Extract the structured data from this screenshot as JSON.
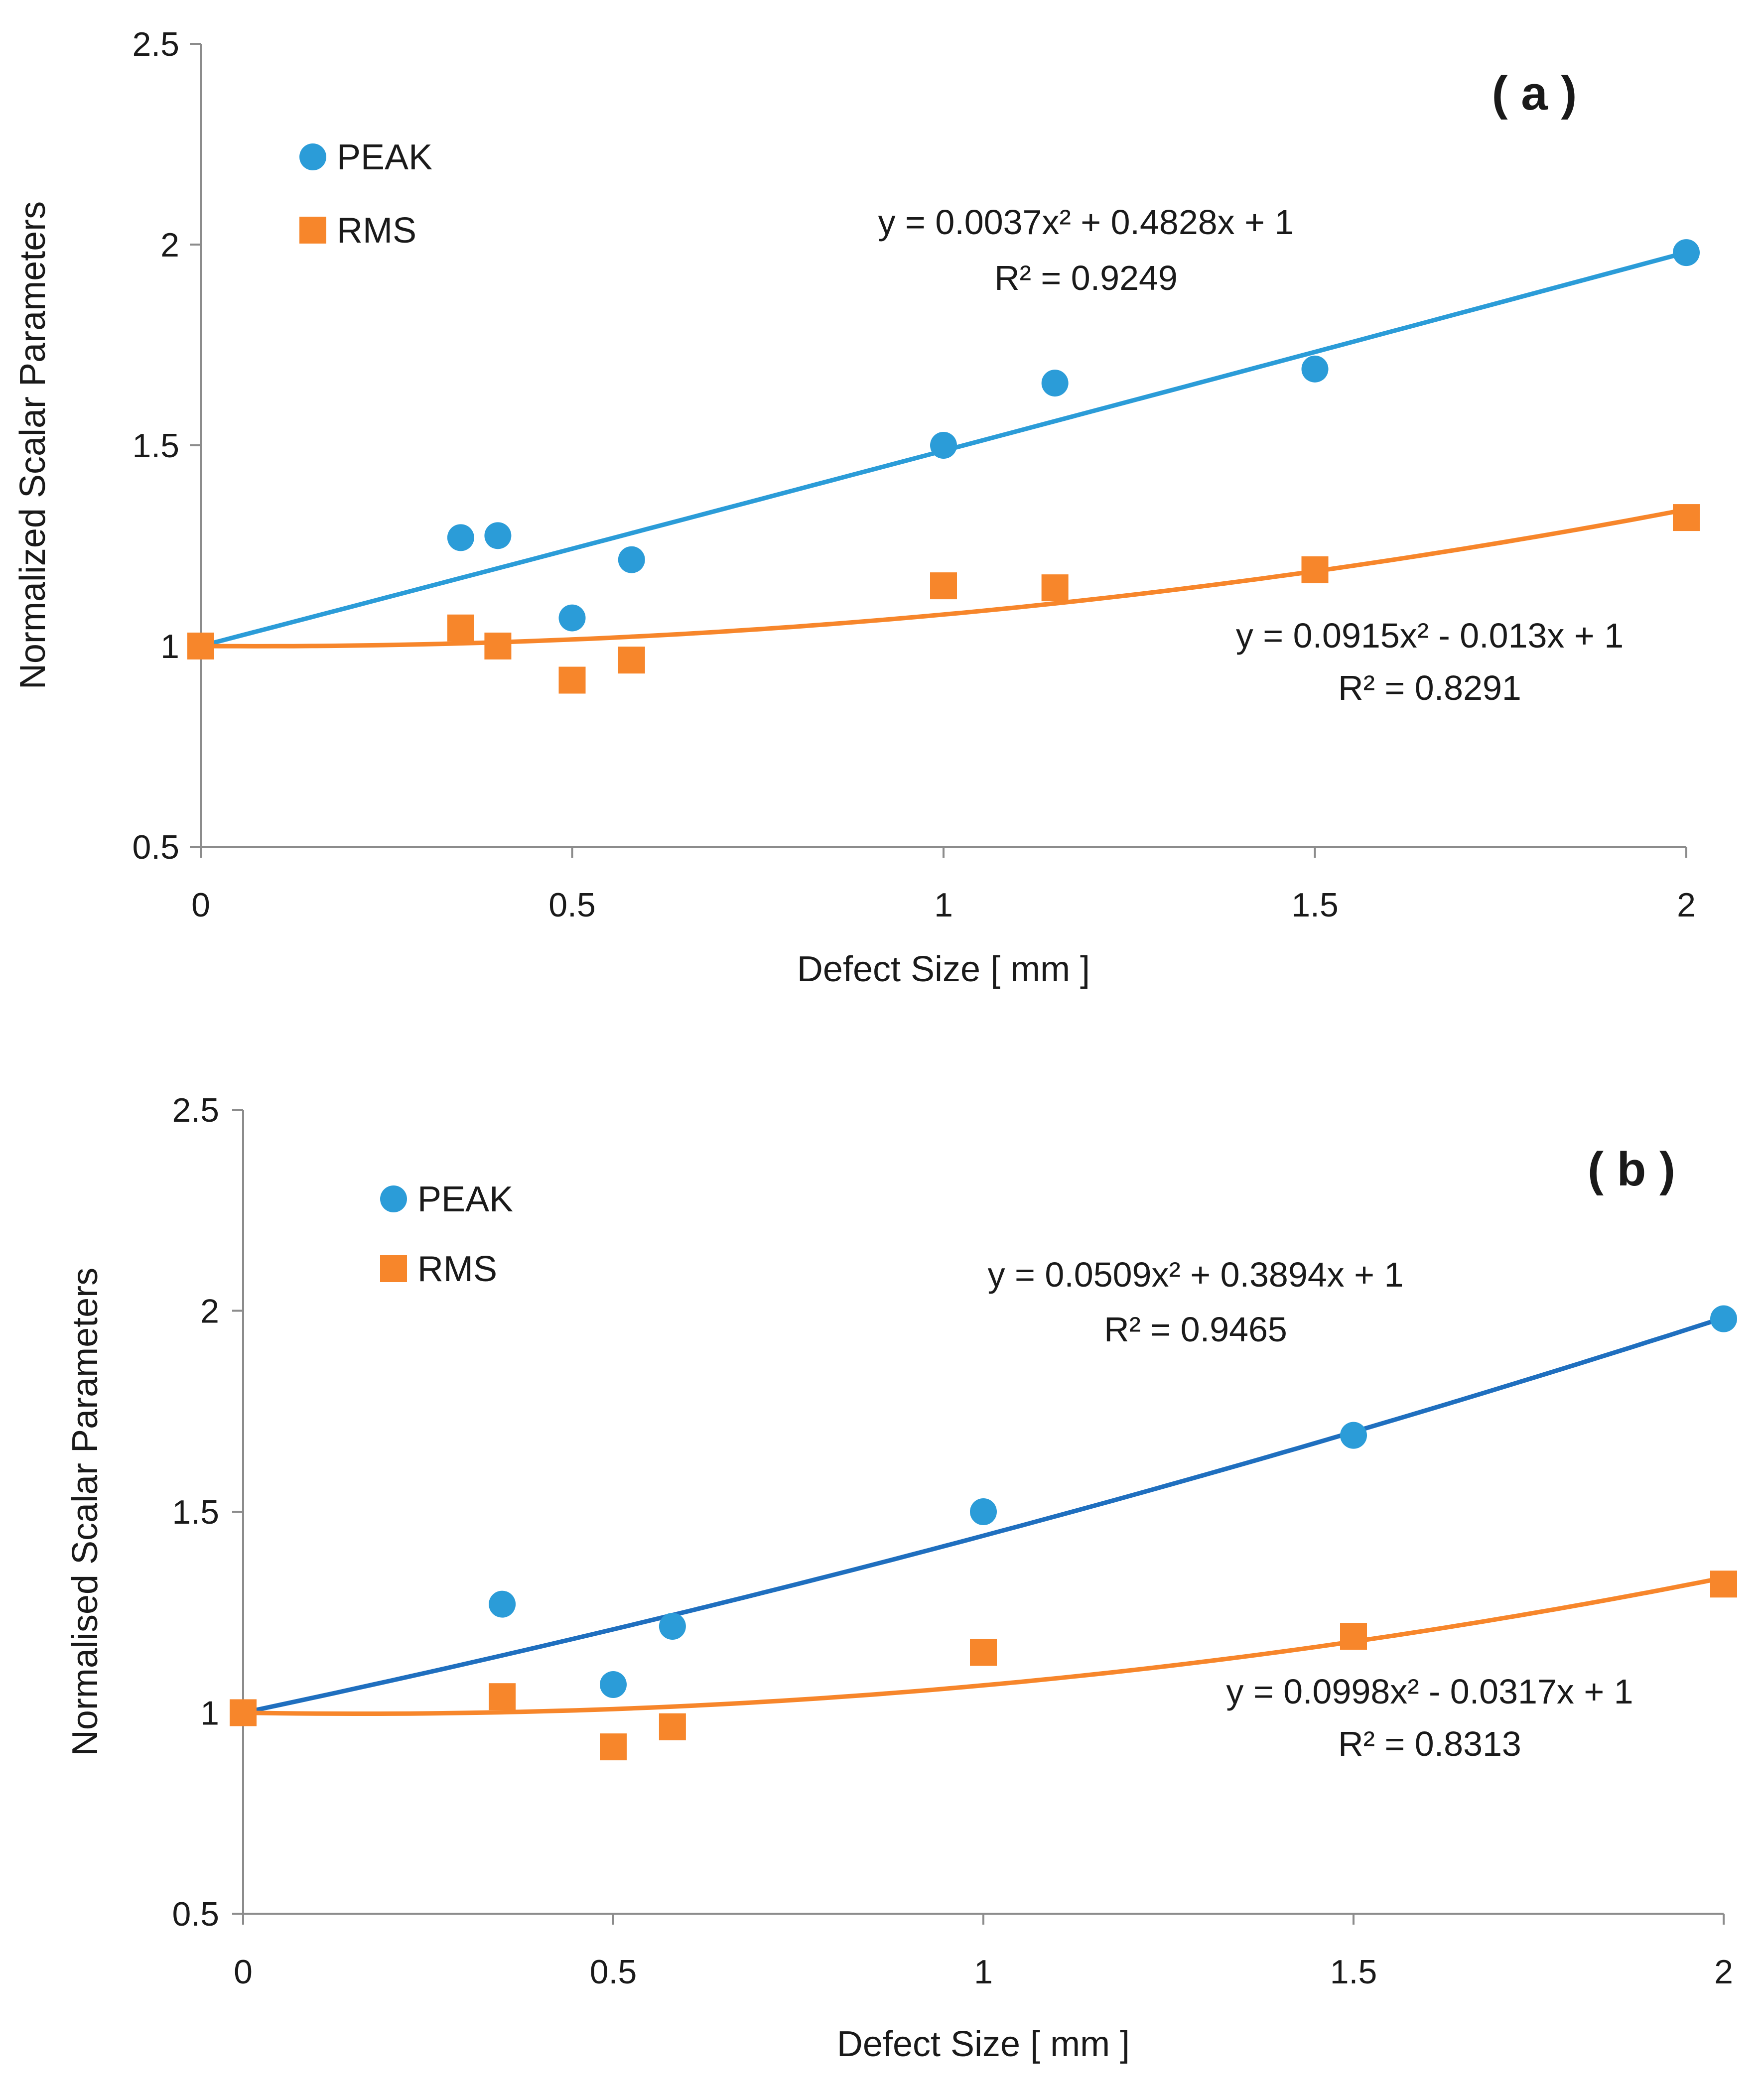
{
  "chart_data": [
    {
      "type": "scatter",
      "panel_label": "( a )",
      "xlabel": "Defect Size  [ mm ]",
      "ylabel": "Normalized Scalar Parameters",
      "xlim": [
        0,
        2
      ],
      "ylim": [
        0.5,
        2.5
      ],
      "x_ticks": [
        0,
        0.5,
        1,
        1.5,
        2
      ],
      "x_tick_labels": [
        "0",
        "0.5",
        "1",
        "1.5",
        "2"
      ],
      "y_ticks": [
        0.5,
        1,
        1.5,
        2,
        2.5
      ],
      "y_tick_labels": [
        "0.5",
        "1",
        "1.5",
        "2",
        "2.5"
      ],
      "legend_position": "top-left",
      "series": [
        {
          "name": "PEAK",
          "marker": "circle",
          "color": "#2b9cd8",
          "x": [
            0,
            0.35,
            0.4,
            0.5,
            0.58,
            1.0,
            1.15,
            1.5,
            2.0
          ],
          "y": [
            1.0,
            1.27,
            1.275,
            1.07,
            1.215,
            1.5,
            1.655,
            1.69,
            1.98
          ],
          "fit": {
            "a": 0.0037,
            "b": 0.4828,
            "c": 1,
            "color": "#2b9cd8"
          },
          "equation": "y = 0.0037x² + 0.4828x + 1",
          "r2": "R² = 0.9249"
        },
        {
          "name": "RMS",
          "marker": "square",
          "color": "#f7862b",
          "x": [
            0,
            0.35,
            0.4,
            0.5,
            0.58,
            1.0,
            1.15,
            1.5,
            2.0
          ],
          "y": [
            1.0,
            1.045,
            1.0,
            0.915,
            0.965,
            1.15,
            1.145,
            1.19,
            1.32
          ],
          "fit": {
            "a": 0.0915,
            "b": -0.013,
            "c": 1,
            "color": "#f7862b"
          },
          "equation": "y = 0.0915x² - 0.013x + 1",
          "r2": "R² = 0.8291"
        }
      ]
    },
    {
      "type": "scatter",
      "panel_label": "( b )",
      "xlabel": "Defect Size  [ mm ]",
      "ylabel": "Normalised Scalar Parameters",
      "xlim": [
        0,
        2
      ],
      "ylim": [
        0.5,
        2.5
      ],
      "x_ticks": [
        0,
        0.5,
        1,
        1.5,
        2
      ],
      "x_tick_labels": [
        "0",
        "0.5",
        "1",
        "1.5",
        "2"
      ],
      "y_ticks": [
        0.5,
        1,
        1.5,
        2,
        2.5
      ],
      "y_tick_labels": [
        "0.5",
        "1",
        "1.5",
        "2",
        "2.5"
      ],
      "legend_position": "top-left",
      "series": [
        {
          "name": "PEAK",
          "marker": "circle",
          "color": "#2b9cd8",
          "x": [
            0,
            0.35,
            0.5,
            0.58,
            1.0,
            1.5,
            2.0
          ],
          "y": [
            1.0,
            1.27,
            1.07,
            1.215,
            1.5,
            1.69,
            1.98
          ],
          "fit": {
            "a": 0.0509,
            "b": 0.3894,
            "c": 1,
            "color": "#1f6fbf"
          },
          "equation": "y = 0.0509x² + 0.3894x + 1",
          "r2": "R² = 0.9465"
        },
        {
          "name": "RMS",
          "marker": "square",
          "color": "#f7862b",
          "x": [
            0,
            0.35,
            0.5,
            0.58,
            1.0,
            1.5,
            2.0
          ],
          "y": [
            1.0,
            1.04,
            0.915,
            0.965,
            1.15,
            1.19,
            1.32
          ],
          "fit": {
            "a": 0.0998,
            "b": -0.0317,
            "c": 1,
            "color": "#f7862b"
          },
          "equation": "y = 0.0998x² - 0.0317x + 1",
          "r2": "R² = 0.8313"
        }
      ]
    }
  ]
}
